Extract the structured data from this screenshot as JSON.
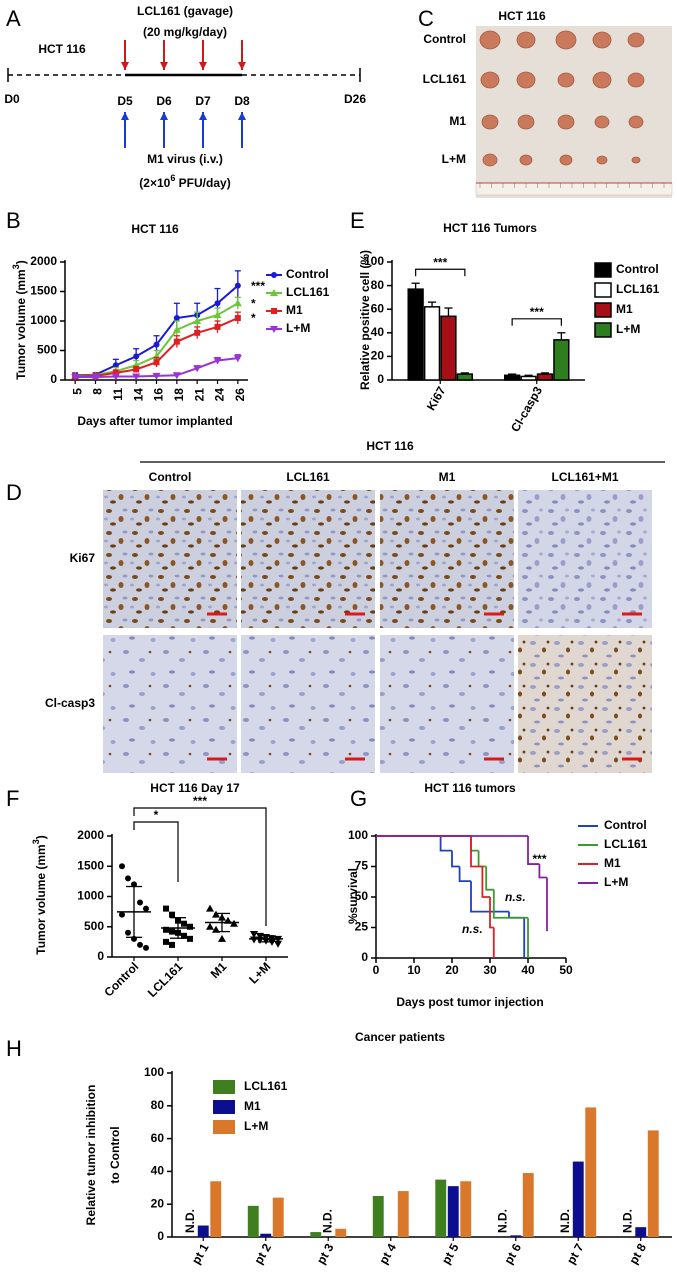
{
  "timeline": {
    "panel": "A",
    "cell_line": "HCT 116",
    "drug": "LCL161 (gavage)",
    "drug_dose": "(20 mg/kg/day)",
    "virus": "M1 virus (i.v.)",
    "virus_dose": {
      "before": "(2×10",
      "sup": "6",
      "after": " PFU/day)"
    },
    "days": [
      "D0",
      "D5",
      "D6",
      "D7",
      "D8",
      "D26"
    ]
  },
  "tumor_photo": {
    "panel": "C",
    "title": "HCT 116",
    "rows": [
      "Control",
      "LCL161",
      "M1",
      "L+M"
    ]
  },
  "histology": {
    "panel": "D",
    "title": "HCT 116",
    "columns": [
      "Control",
      "LCL161",
      "M1",
      "LCL161+M1"
    ],
    "rows": [
      "Ki67",
      "Cl-casp3"
    ]
  },
  "chart_data": [
    {
      "type": "line",
      "panel": "B",
      "title": "HCT 116",
      "ylabel": {
        "text": "Tumor volume (mm",
        "sup": "3",
        "end": ")"
      },
      "xlabel": "Days after tumor implanted",
      "categories": [
        "5",
        "8",
        "11",
        "14",
        "16",
        "18",
        "21",
        "24",
        "26"
      ],
      "ylim": [
        0,
        2000
      ],
      "yticks": [
        0,
        500,
        1000,
        1500,
        2000
      ],
      "series": [
        {
          "name": "Control",
          "color": "#1a1ad6",
          "values": [
            80,
            90,
            250,
            400,
            600,
            1050,
            1100,
            1300,
            1600
          ],
          "errors": [
            40,
            30,
            100,
            130,
            150,
            250,
            200,
            250,
            250
          ]
        },
        {
          "name": "LCL161",
          "color": "#6cc63c",
          "values": [
            70,
            80,
            150,
            250,
            400,
            850,
            1000,
            1100,
            1300
          ],
          "errors": [
            30,
            20,
            60,
            80,
            100,
            150,
            150,
            120,
            100
          ]
        },
        {
          "name": "M1",
          "color": "#e02020",
          "values": [
            60,
            70,
            120,
            180,
            300,
            650,
            800,
            900,
            1050
          ],
          "errors": [
            30,
            20,
            50,
            50,
            80,
            100,
            100,
            100,
            100
          ]
        },
        {
          "name": "L+M",
          "color": "#9a32d6",
          "values": [
            50,
            50,
            60,
            60,
            70,
            80,
            200,
            330,
            370
          ],
          "errors": [
            20,
            20,
            20,
            20,
            20,
            30,
            40,
            50,
            60
          ]
        }
      ],
      "annotations": [
        {
          "text": "***",
          "color": "#1a1ad6"
        },
        {
          "text": "*",
          "color": "#6cc63c"
        },
        {
          "text": "*",
          "color": "#e02020"
        }
      ]
    },
    {
      "type": "bar",
      "panel": "E",
      "title": "HCT 116 Tumors",
      "ylabel": "Relative positive cell (%)",
      "categories": [
        "Ki67",
        "Cl-casp3"
      ],
      "ylim": [
        0,
        100
      ],
      "yticks": [
        0,
        20,
        40,
        60,
        80,
        100
      ],
      "series": [
        {
          "name": "Control",
          "color": "#000000",
          "values": [
            77,
            4
          ],
          "errors": [
            5,
            1
          ]
        },
        {
          "name": "LCL161",
          "color": "#ffffff",
          "values": [
            62,
            3
          ],
          "errors": [
            4,
            1
          ]
        },
        {
          "name": "M1",
          "color": "#a50f15",
          "values": [
            54,
            5
          ],
          "errors": [
            7,
            1
          ]
        },
        {
          "name": "L+M",
          "color": "#2e7d1e",
          "values": [
            5,
            34
          ],
          "errors": [
            1,
            6
          ]
        }
      ],
      "significance": [
        "***",
        "***"
      ]
    },
    {
      "type": "dotplot",
      "panel": "F",
      "title": "HCT 116 Day 17",
      "ylabel": {
        "text": "Tumor volume (mm",
        "sup": "3",
        "end": ")"
      },
      "categories": [
        "Control",
        "LCL161",
        "M1",
        "L+M"
      ],
      "ylim": [
        0,
        2000
      ],
      "yticks": [
        0,
        500,
        1000,
        1500,
        2000
      ],
      "points": [
        [
          1500,
          1300,
          1200,
          900,
          800,
          700,
          400,
          300,
          200,
          150
        ],
        [
          800,
          700,
          600,
          550,
          500,
          450,
          420,
          400,
          350,
          300,
          250,
          200
        ],
        [
          800,
          700,
          650,
          600,
          550,
          500,
          450,
          300
        ],
        [
          380,
          350,
          330,
          310,
          300,
          290,
          280,
          270,
          250,
          220
        ]
      ],
      "means": [
        745,
        480,
        570,
        300
      ],
      "sds": [
        420,
        170,
        150,
        50
      ],
      "significance": [
        "*",
        "***"
      ]
    },
    {
      "type": "step",
      "panel": "G",
      "title": "HCT 116 tumors",
      "ylabel": "%survival",
      "xlabel": "Days post tumor injection",
      "xlim": [
        0,
        50
      ],
      "xticks": [
        0,
        10,
        20,
        30,
        40,
        50
      ],
      "ylim": [
        0,
        100
      ],
      "yticks": [
        0,
        25,
        50,
        75,
        100
      ],
      "series": [
        {
          "name": "Control",
          "color": "#2040c0",
          "x": [
            0,
            17,
            20,
            22,
            25,
            35,
            39
          ],
          "values": [
            100,
            88,
            75,
            63,
            38,
            33,
            0
          ]
        },
        {
          "name": "LCL161",
          "color": "#3c9a2c",
          "x": [
            0,
            25,
            27,
            29,
            31,
            40
          ],
          "values": [
            100,
            88,
            75,
            56,
            33,
            0
          ]
        },
        {
          "name": "M1",
          "color": "#e02020",
          "x": [
            0,
            25,
            28,
            30,
            31
          ],
          "values": [
            100,
            75,
            50,
            25,
            0
          ]
        },
        {
          "name": "L+M",
          "color": "#8a1ea0",
          "x": [
            0,
            40,
            43,
            45
          ],
          "values": [
            100,
            77,
            66,
            22
          ]
        }
      ],
      "annotations": [
        {
          "text": "***",
          "color": "#8a1ea0"
        },
        {
          "text": "n.s.",
          "color": "#3c9a2c"
        },
        {
          "text": "n.s.",
          "color": "#e02020"
        }
      ]
    },
    {
      "type": "bar",
      "panel": "H",
      "title": "Cancer patients",
      "ylabel": [
        "Relative tumor inhibition",
        "to Control"
      ],
      "categories": [
        "pt 1",
        "pt 2",
        "pt 3",
        "pt 4",
        "pt 5",
        "pt 6",
        "pt 7",
        "pt 8"
      ],
      "ylim": [
        0,
        100
      ],
      "yticks": [
        0,
        20,
        40,
        60,
        80,
        100
      ],
      "series": [
        {
          "name": "LCL161",
          "color": "#3f7f1f",
          "values": [
            null,
            19,
            3,
            25,
            35,
            null,
            null,
            null
          ],
          "value_labels": [
            "N.D.",
            null,
            null,
            null,
            null,
            "N.D.",
            "N.D.",
            "N.D."
          ]
        },
        {
          "name": "M1",
          "color": "#0d0d8f",
          "values": [
            7,
            2,
            null,
            0,
            31,
            1,
            46,
            6
          ],
          "value_labels": [
            null,
            null,
            "N.D.",
            null,
            null,
            null,
            null,
            null
          ]
        },
        {
          "name": "L+M",
          "color": "#d9782a",
          "values": [
            34,
            24,
            5,
            28,
            34,
            39,
            79,
            65
          ]
        }
      ]
    }
  ]
}
